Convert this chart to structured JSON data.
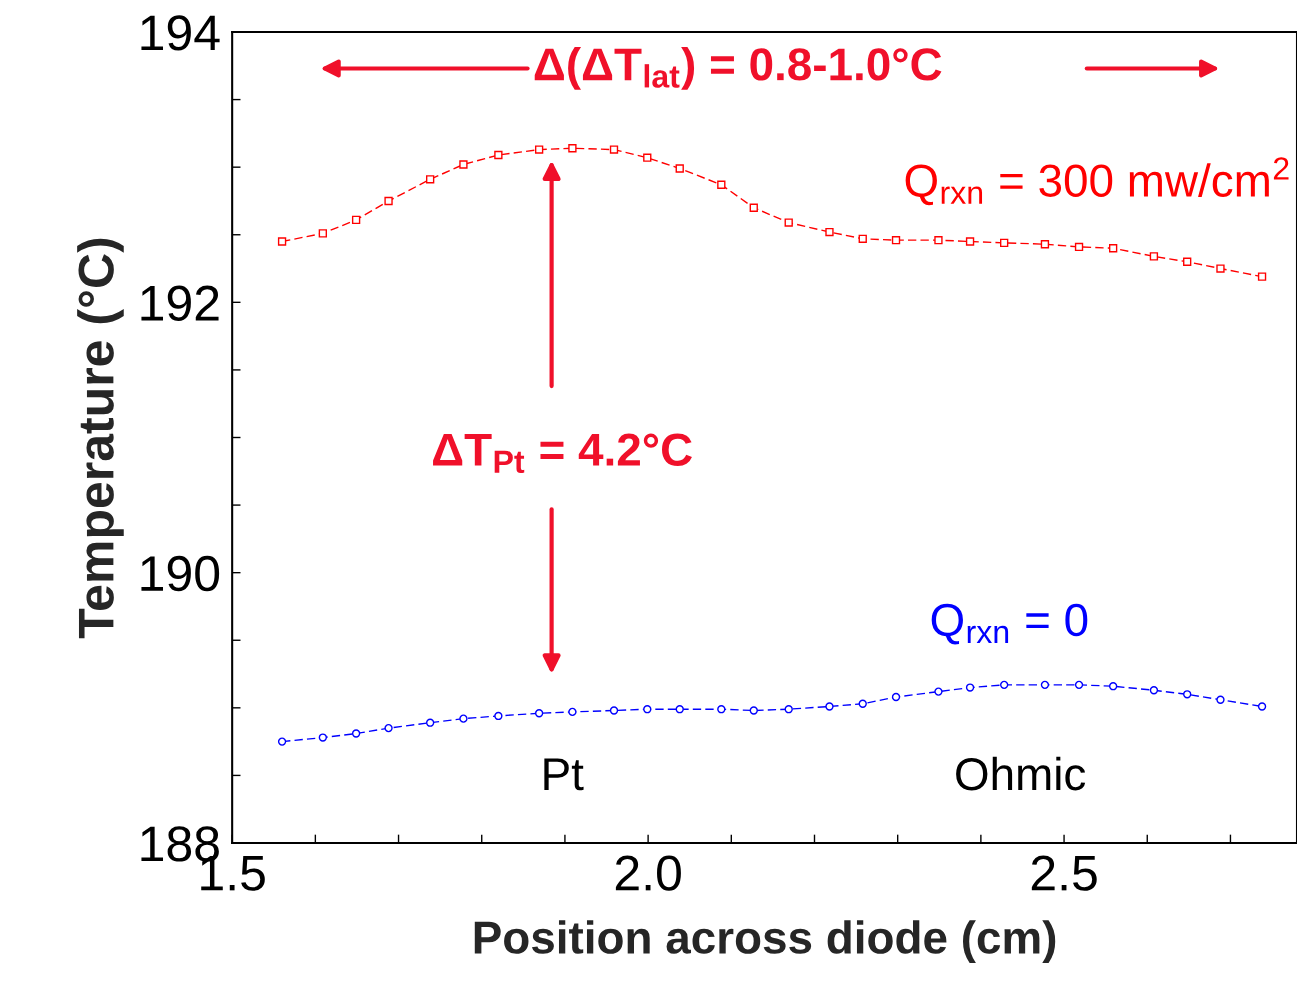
{
  "chart_data": {
    "type": "line",
    "xlabel": "Position across diode (cm)",
    "ylabel": "Temperature (°C)",
    "xlim": [
      1.5,
      2.78
    ],
    "xticks": [
      1.5,
      {
        "value": 1.6,
        "label": null
      },
      {
        "value": 1.7,
        "label": null
      },
      {
        "value": 1.8,
        "label": null
      },
      {
        "value": 1.9,
        "label": null
      },
      {
        "value": 2.0,
        "label": "2.0"
      },
      {
        "value": 2.1,
        "label": null
      },
      {
        "value": 2.2,
        "label": null
      },
      {
        "value": 2.3,
        "label": null
      },
      {
        "value": 2.4,
        "label": null
      },
      2.5,
      {
        "value": 2.6,
        "label": null
      },
      {
        "value": 2.7,
        "label": null
      }
    ],
    "ylim": [
      188,
      194
    ],
    "yticks": [
      188,
      {
        "value": 188.5,
        "label": null
      },
      {
        "value": 189,
        "label": null
      },
      {
        "value": 189.5,
        "label": null
      },
      190,
      {
        "value": 190.5,
        "label": null
      },
      {
        "value": 191,
        "label": null
      },
      {
        "value": 191.5,
        "label": null
      },
      192,
      {
        "value": 192.5,
        "label": null
      },
      {
        "value": 193,
        "label": null
      },
      {
        "value": 193.5,
        "label": null
      },
      194
    ],
    "grid": false,
    "legend": false,
    "line_style": "dashed",
    "series": [
      {
        "name": "Q$_{rxn}$ = 300 mw/cm$^{2}$",
        "color": "#ff0000",
        "marker": "square",
        "x": [
          1.56,
          1.609,
          1.649,
          1.688,
          1.738,
          1.778,
          1.82,
          1.869,
          1.909,
          1.959,
          1.999,
          2.038,
          2.088,
          2.127,
          2.169,
          2.218,
          2.258,
          2.298,
          2.349,
          2.387,
          2.428,
          2.477,
          2.518,
          2.559,
          2.608,
          2.648,
          2.688,
          2.738
        ],
        "values": [
          192.45,
          192.51,
          192.61,
          192.75,
          192.91,
          193.02,
          193.09,
          193.13,
          193.14,
          193.13,
          193.07,
          192.99,
          192.87,
          192.7,
          192.59,
          192.52,
          192.47,
          192.46,
          192.46,
          192.45,
          192.44,
          192.43,
          192.41,
          192.4,
          192.34,
          192.3,
          192.25,
          192.19
        ]
      },
      {
        "name": "Q$_{rxn}$ = 0",
        "color": "#0000ff",
        "marker": "circle",
        "x": [
          1.56,
          1.609,
          1.649,
          1.688,
          1.738,
          1.778,
          1.82,
          1.869,
          1.909,
          1.959,
          1.999,
          2.038,
          2.088,
          2.127,
          2.169,
          2.218,
          2.258,
          2.298,
          2.349,
          2.387,
          2.428,
          2.477,
          2.518,
          2.559,
          2.608,
          2.648,
          2.688,
          2.738
        ],
        "values": [
          188.75,
          188.78,
          188.81,
          188.85,
          188.89,
          188.92,
          188.94,
          188.96,
          188.97,
          188.98,
          188.99,
          188.99,
          188.99,
          188.98,
          188.99,
          189.01,
          189.03,
          189.08,
          189.12,
          189.15,
          189.17,
          189.17,
          189.17,
          189.16,
          189.13,
          189.1,
          189.06,
          189.01
        ]
      }
    ],
    "annotations": [
      "Δ(ΔT$_{lat}$) = 0.8-1.0°C",
      "ΔT$_{Pt}$ = 4.2°C",
      "Pt",
      "Ohmic"
    ]
  }
}
